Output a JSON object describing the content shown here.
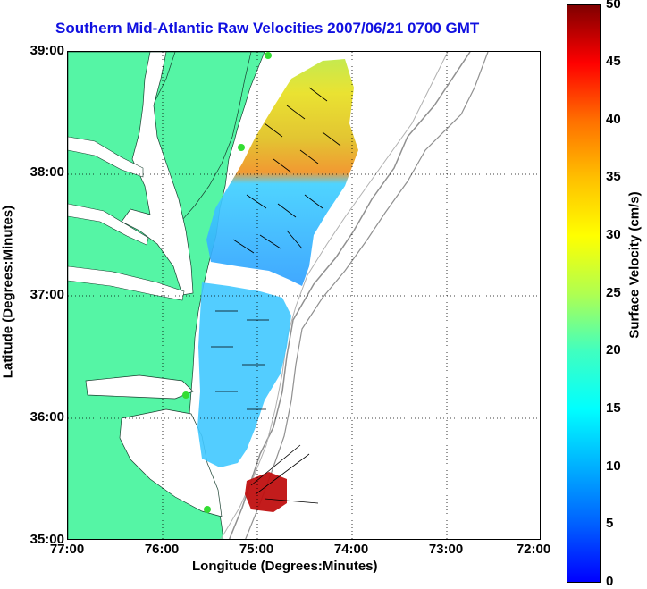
{
  "title": "Southern Mid-Atlantic Raw Velocities 2007/06/21 0700 GMT",
  "x_axis": {
    "label": "Longitude (Degrees:Minutes)",
    "ticks": [
      "77:00",
      "76:00",
      "75:00",
      "74:00",
      "73:00",
      "72:00"
    ]
  },
  "y_axis": {
    "label": "Latitude (Degrees:Minutes)",
    "ticks": [
      "39:00",
      "38:00",
      "37:00",
      "36:00",
      "35:00"
    ]
  },
  "colorbar": {
    "label": "Surface Velocity (cm/s)",
    "ticks": [
      "50",
      "45",
      "40",
      "35",
      "30",
      "25",
      "20",
      "15",
      "10",
      "5",
      "0"
    ],
    "range": [
      0,
      50
    ]
  },
  "colors": {
    "land": "#55f5a5",
    "water": "#ffffff",
    "title": "#1010e0",
    "grid": "#000000",
    "bathymetry": "#909090",
    "station": "#33dd33"
  }
}
